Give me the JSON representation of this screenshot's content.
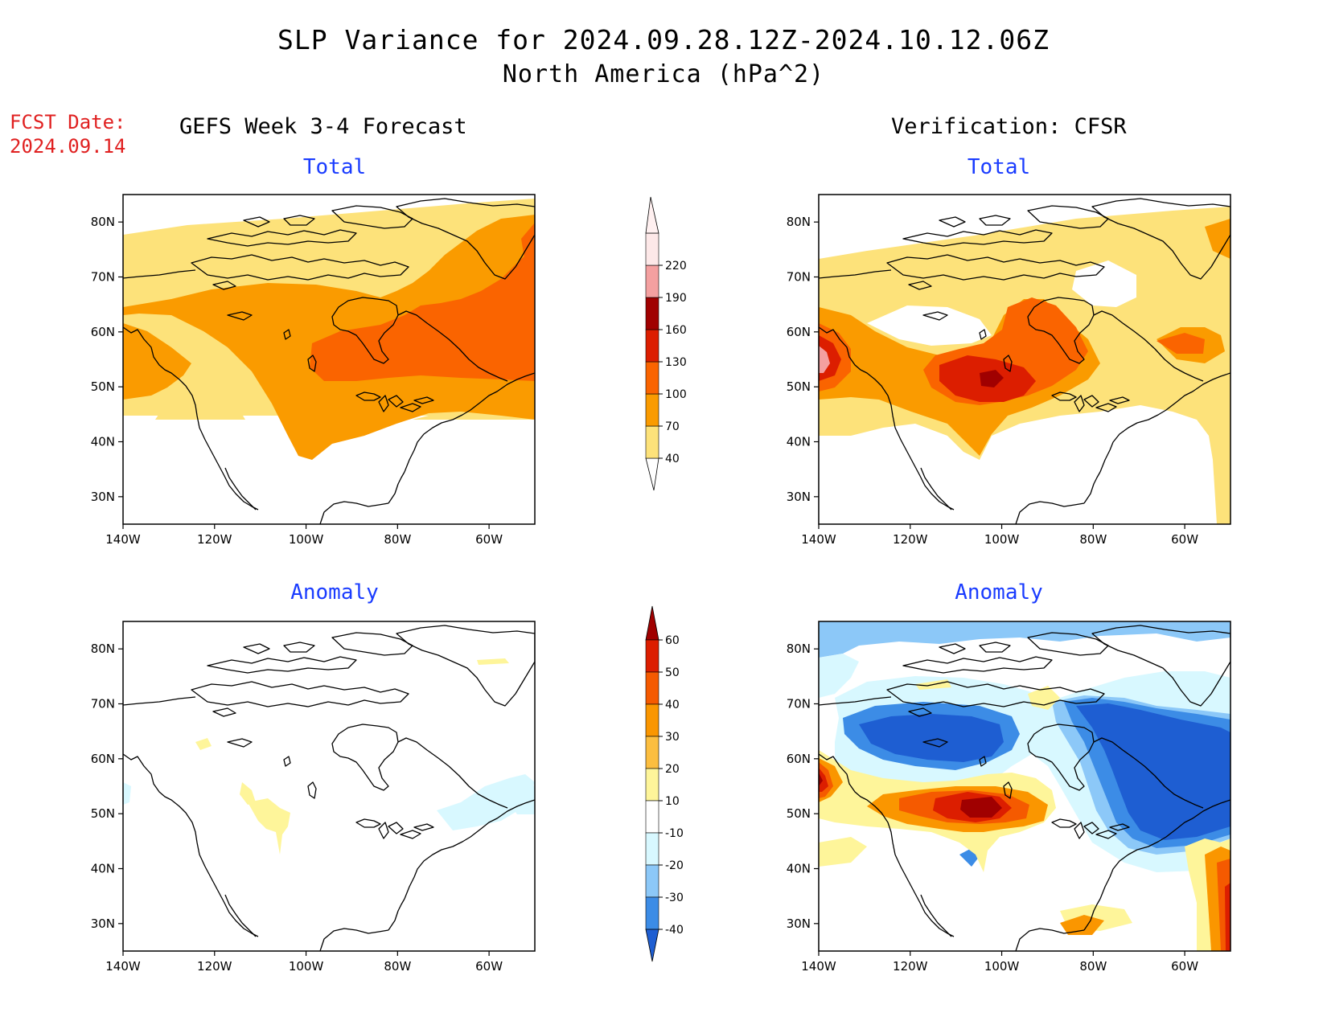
{
  "title_line1": "SLP Variance for 2024.09.28.12Z-2024.10.12.06Z",
  "title_line2": "North America (hPa^2)",
  "fcst_label": "FCST Date:",
  "fcst_date": "2024.09.14",
  "left_column_title": "GEFS Week 3-4 Forecast",
  "right_column_title": "Verification: CFSR",
  "panels": [
    {
      "id": "forecast-total",
      "subtitle": "Total"
    },
    {
      "id": "verification-total",
      "subtitle": "Total"
    },
    {
      "id": "forecast-anomaly",
      "subtitle": "Anomaly"
    },
    {
      "id": "verification-anomaly",
      "subtitle": "Anomaly"
    }
  ],
  "axes": {
    "lat_ticks": [
      "80N",
      "70N",
      "60N",
      "50N",
      "40N",
      "30N"
    ],
    "lon_ticks": [
      "140W",
      "120W",
      "100W",
      "80W",
      "60W"
    ],
    "lat_range": [
      25,
      85
    ],
    "lon_range": [
      -140,
      -50
    ]
  },
  "total_colorbar": {
    "labels": [
      "220",
      "190",
      "160",
      "130",
      "100",
      "70",
      "40"
    ],
    "colors": [
      "#fde8e8",
      "#f4a0a0",
      "#a00000",
      "#dc1e00",
      "#fa6400",
      "#fa9b00",
      "#fde27a"
    ]
  },
  "anomaly_colorbar": {
    "labels": [
      "60",
      "50",
      "40",
      "30",
      "20",
      "10",
      "-10",
      "-20",
      "-30",
      "-40"
    ],
    "colors": [
      "#a00000",
      "#dc1e00",
      "#f55a00",
      "#fa9600",
      "#fcbe40",
      "#fef59a",
      "#ffffff",
      "#d8f8ff",
      "#8cc8f8",
      "#3c8ce6",
      "#1e5ed2"
    ]
  }
}
